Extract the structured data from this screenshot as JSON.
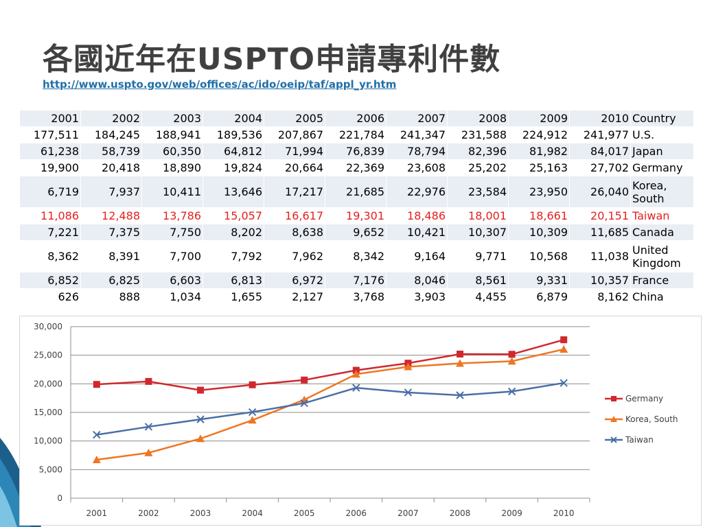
{
  "title": "各國近年在USPTO申請專利件數",
  "link": "http://www.uspto.gov/web/offices/ac/ido/oeip/taf/appl_yr.htm",
  "table": {
    "years": [
      "2001",
      "2002",
      "2003",
      "2004",
      "2005",
      "2006",
      "2007",
      "2008",
      "2009",
      "2010"
    ],
    "header_country": "Country",
    "highlight_color": "#e61e1e",
    "rows": [
      {
        "country": "U.S.",
        "values": [
          "177,511",
          "184,245",
          "188,941",
          "189,536",
          "207,867",
          "221,784",
          "241,347",
          "231,588",
          "224,912",
          "241,977"
        ]
      },
      {
        "country": "Japan",
        "values": [
          "61,238",
          "58,739",
          "60,350",
          "64,812",
          "71,994",
          "76,839",
          "78,794",
          "82,396",
          "81,982",
          "84,017"
        ]
      },
      {
        "country": "Germany",
        "values": [
          "19,900",
          "20,418",
          "18,890",
          "19,824",
          "20,664",
          "22,369",
          "23,608",
          "25,202",
          "25,163",
          "27,702"
        ]
      },
      {
        "country": "Korea, South",
        "values": [
          "6,719",
          "7,937",
          "10,411",
          "13,646",
          "17,217",
          "21,685",
          "22,976",
          "23,584",
          "23,950",
          "26,040"
        ],
        "tall": true
      },
      {
        "country": "Taiwan",
        "values": [
          "11,086",
          "12,488",
          "13,786",
          "15,057",
          "16,617",
          "19,301",
          "18,486",
          "18,001",
          "18,661",
          "20,151"
        ],
        "highlight": true
      },
      {
        "country": "Canada",
        "values": [
          "7,221",
          "7,375",
          "7,750",
          "8,202",
          "8,638",
          "9,652",
          "10,421",
          "10,307",
          "10,309",
          "11,685"
        ]
      },
      {
        "country": "United Kingdom",
        "values": [
          "8,362",
          "8,391",
          "7,700",
          "7,792",
          "7,962",
          "8,342",
          "9,164",
          "9,771",
          "10,568",
          "11,038"
        ],
        "tall": true
      },
      {
        "country": "France",
        "values": [
          "6,852",
          "6,825",
          "6,603",
          "6,813",
          "6,972",
          "7,176",
          "8,046",
          "8,561",
          "9,331",
          "10,357"
        ]
      },
      {
        "country": "China",
        "values": [
          "626",
          "888",
          "1,034",
          "1,655",
          "2,127",
          "3,768",
          "3,903",
          "4,455",
          "6,879",
          "8,162"
        ]
      }
    ]
  },
  "chart_data": {
    "type": "line",
    "x": [
      "2001",
      "2002",
      "2003",
      "2004",
      "2005",
      "2006",
      "2007",
      "2008",
      "2009",
      "2010"
    ],
    "ylim": [
      0,
      30000
    ],
    "yticks": [
      0,
      5000,
      10000,
      15000,
      20000,
      25000,
      30000
    ],
    "ytick_labels": [
      "0",
      "5,000",
      "10,000",
      "15,000",
      "20,000",
      "25,000",
      "30,000"
    ],
    "grid": true,
    "legend_position": "right",
    "series": [
      {
        "name": "Germany",
        "color": "#d0282e",
        "marker": "square",
        "values": [
          19900,
          20418,
          18890,
          19824,
          20664,
          22369,
          23608,
          25202,
          25163,
          27702
        ]
      },
      {
        "name": "Korea, South",
        "color": "#ee7622",
        "marker": "triangle",
        "values": [
          6719,
          7937,
          10411,
          13646,
          17217,
          21685,
          22976,
          23584,
          23950,
          26040
        ]
      },
      {
        "name": "Taiwan",
        "color": "#4a6fa5",
        "marker": "x",
        "values": [
          11086,
          12488,
          13786,
          15057,
          16617,
          19301,
          18486,
          18001,
          18661,
          20151
        ]
      }
    ]
  }
}
